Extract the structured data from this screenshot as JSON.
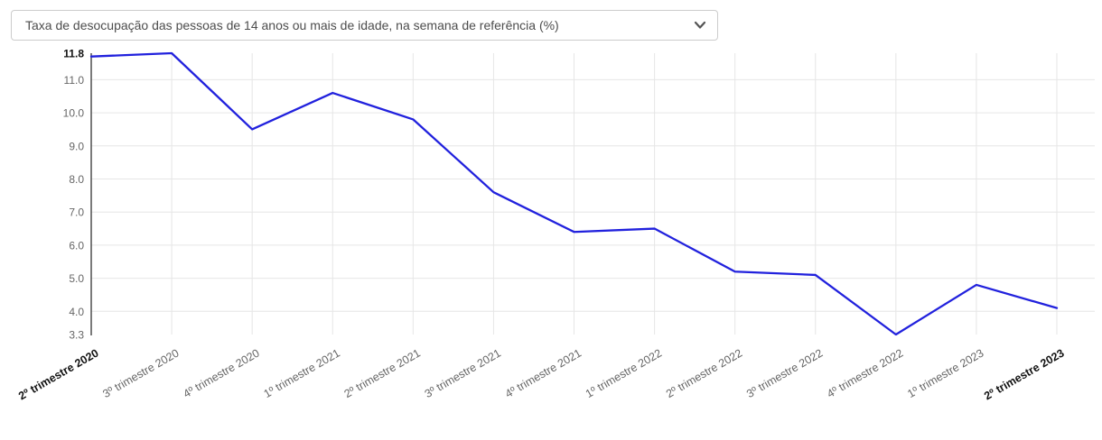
{
  "selector": {
    "selected": "Taxa de desocupação das pessoas de 14 anos ou mais de idade, na semana de referência (%)",
    "chevron_icon": "chevron-down"
  },
  "chart_data": {
    "type": "line",
    "title": "Taxa de desocupação das pessoas de 14 anos ou mais de idade, na semana de referência (%)",
    "categories": [
      "2º trimestre 2020",
      "3º trimestre 2020",
      "4º trimestre 2020",
      "1º trimestre 2021",
      "2º trimestre 2021",
      "3º trimestre 2021",
      "4º trimestre 2021",
      "1º trimestre 2022",
      "2º trimestre 2022",
      "3º trimestre 2022",
      "4º trimestre 2022",
      "1º trimestre 2023",
      "2º trimestre 2023"
    ],
    "values": [
      11.7,
      11.8,
      9.5,
      10.6,
      9.8,
      7.6,
      6.4,
      6.5,
      5.2,
      5.1,
      3.3,
      4.8,
      4.1
    ],
    "xlabel": "",
    "ylabel": "",
    "ylim": [
      3.3,
      11.8
    ],
    "yticks": [
      11.8,
      11.0,
      10.0,
      9.0,
      8.0,
      7.0,
      6.0,
      5.0,
      4.0,
      3.3
    ],
    "ytick_labels": [
      "11.8",
      "11.0",
      "10.0",
      "9.0",
      "8.0",
      "7.0",
      "6.0",
      "5.0",
      "4.0",
      "3.3"
    ],
    "ytick_bold": [
      true,
      false,
      false,
      false,
      false,
      false,
      false,
      false,
      false,
      false
    ],
    "ytick_grid": [
      false,
      true,
      true,
      true,
      true,
      true,
      true,
      true,
      true,
      false
    ],
    "bold_category_indices": [
      0,
      12
    ],
    "grid": true,
    "legend": "none",
    "colors": {
      "line": "#2121dd",
      "grid": "#e6e6e6",
      "axis": "#333333",
      "tick_text": "#666666",
      "tick_text_bold": "#111111"
    }
  }
}
